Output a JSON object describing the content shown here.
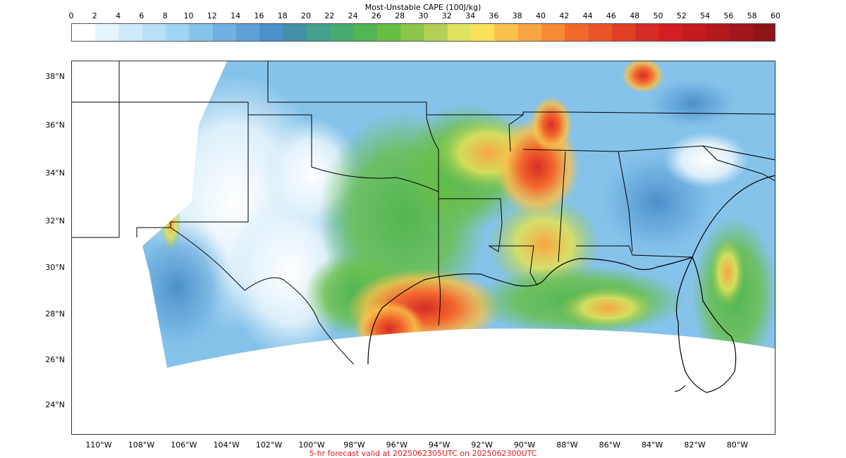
{
  "colorbar": {
    "title": "Most-Unstable CAPE (100J/kg)",
    "ticks": [
      "0",
      "2",
      "4",
      "6",
      "8",
      "10",
      "12",
      "14",
      "16",
      "18",
      "20",
      "22",
      "24",
      "26",
      "28",
      "30",
      "32",
      "34",
      "36",
      "38",
      "40",
      "42",
      "44",
      "46",
      "48",
      "50",
      "52",
      "54",
      "56",
      "58",
      "60"
    ],
    "colors": [
      "#ffffff",
      "#e6f4fc",
      "#cfe9f8",
      "#b8e0f6",
      "#9fd4f2",
      "#86c3ea",
      "#70b0e0",
      "#5e9fd6",
      "#4b8fcb",
      "#4391a6",
      "#44a08d",
      "#47ab70",
      "#50b552",
      "#68be44",
      "#8cc54b",
      "#b2d057",
      "#dfe25e",
      "#fbe05a",
      "#f9c04b",
      "#f7a540",
      "#f68a37",
      "#f2682c",
      "#ea5528",
      "#e13e26",
      "#d82c27",
      "#d31e25",
      "#c4191f",
      "#b4181d",
      "#a3161b",
      "#8f1417"
    ]
  },
  "map": {
    "lat_labels": [
      "38°N",
      "36°N",
      "34°N",
      "32°N",
      "30°N",
      "28°N",
      "26°N",
      "24°N"
    ],
    "lon_labels": [
      "110°W",
      "108°W",
      "106°W",
      "104°W",
      "102°W",
      "100°W",
      "98°W",
      "96°W",
      "94°W",
      "92°W",
      "90°W",
      "88°W",
      "86°W",
      "84°W",
      "82°W",
      "80°W"
    ]
  },
  "footer": "5-hr forecast valid at 2025062305UTC on 2025062300UTC"
}
